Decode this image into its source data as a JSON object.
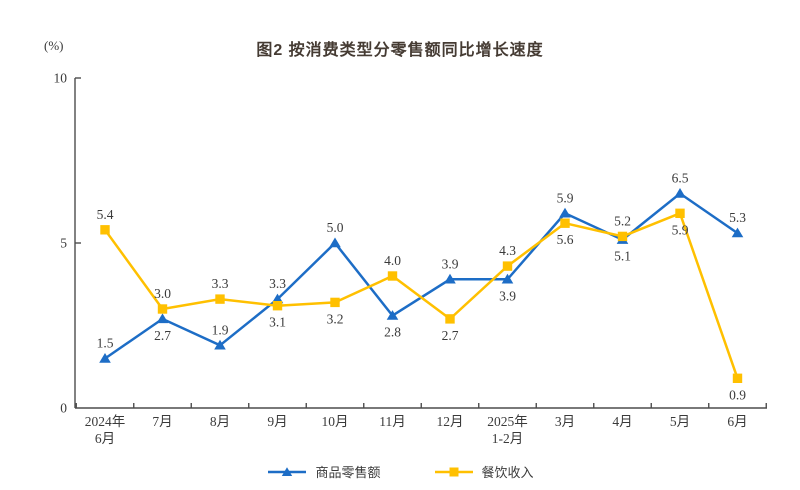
{
  "title": "图2 按消费类型分零售额同比增长速度",
  "colors": {
    "title_text": "#453b33",
    "axis": "#4d4d4d",
    "label_text": "#3a3a3a",
    "series_goods": "#1d6dc6",
    "series_catering": "#ffc000"
  },
  "chart_data": {
    "type": "line",
    "title": "图2 按消费类型分零售额同比增长速度",
    "ylabel": "(%)",
    "xlabel": "",
    "ylim": [
      0,
      10
    ],
    "y_ticks": [
      0,
      5,
      10
    ],
    "grid": false,
    "legend_position": "bottom",
    "categories": [
      "2024年\n6月",
      "7月",
      "8月",
      "9月",
      "10月",
      "11月",
      "12月",
      "2025年\n1-2月",
      "3月",
      "4月",
      "5月",
      "6月"
    ],
    "series": [
      {
        "name": "商品零售额",
        "color": "#1d6dc6",
        "marker": "triangle",
        "values": [
          1.5,
          2.7,
          1.9,
          3.3,
          5.0,
          2.8,
          3.9,
          3.9,
          5.9,
          5.1,
          6.5,
          5.3
        ],
        "label_positions": [
          "above",
          "below",
          "above",
          "above",
          "above",
          "below",
          "above",
          "below",
          "above",
          "below",
          "above",
          "above"
        ]
      },
      {
        "name": "餐饮收入",
        "color": "#ffc000",
        "marker": "square",
        "values": [
          5.4,
          3.0,
          3.3,
          3.1,
          3.2,
          4.0,
          2.7,
          4.3,
          5.6,
          5.2,
          5.9,
          0.9
        ],
        "label_positions": [
          "above",
          "above",
          "above",
          "below",
          "below",
          "above",
          "below",
          "above",
          "below",
          "above",
          "below",
          "below"
        ]
      }
    ]
  }
}
